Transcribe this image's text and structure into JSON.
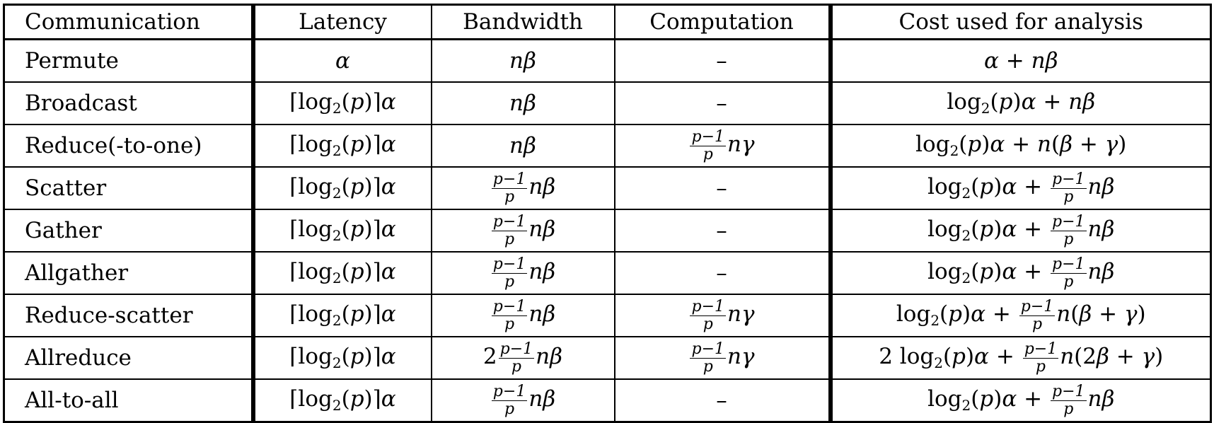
{
  "headers": [
    "Communication",
    "Latency",
    "Bandwidth",
    "Computation",
    "Cost used for analysis"
  ],
  "rows": [
    {
      "name": "Permute",
      "latency": "alpha",
      "bandwidth": "nb",
      "computation": "dash",
      "cost": "a_nb"
    },
    {
      "name": "Broadcast",
      "latency": "ceil",
      "bandwidth": "nb",
      "computation": "dash",
      "cost": "log_nb"
    },
    {
      "name": "Reduce(-to-one)",
      "latency": "ceil",
      "bandwidth": "nb",
      "computation": "fng",
      "cost": "log_nbg"
    },
    {
      "name": "Scatter",
      "latency": "ceil",
      "bandwidth": "fnb",
      "computation": "dash",
      "cost": "log_fnb"
    },
    {
      "name": "Gather",
      "latency": "ceil",
      "bandwidth": "fnb",
      "computation": "dash",
      "cost": "log_fnb"
    },
    {
      "name": "Allgather",
      "latency": "ceil",
      "bandwidth": "fnb",
      "computation": "dash",
      "cost": "log_fnb"
    },
    {
      "name": "Reduce-scatter",
      "latency": "ceil",
      "bandwidth": "fnb",
      "computation": "fng",
      "cost": "log_fnbg"
    },
    {
      "name": "Allreduce",
      "latency": "ceil",
      "bandwidth": "2fnb",
      "computation": "fng",
      "cost": "2log_fn2bg"
    },
    {
      "name": "All-to-all",
      "latency": "ceil",
      "bandwidth": "fnb",
      "computation": "dash",
      "cost": "log_fnb"
    }
  ],
  "symbols": {
    "dash": "–",
    "alpha": "α",
    "beta": "β",
    "gamma": "γ",
    "log": "log",
    "two": "2",
    "p": "p",
    "p_minus_1": "p−1",
    "n": "n"
  }
}
